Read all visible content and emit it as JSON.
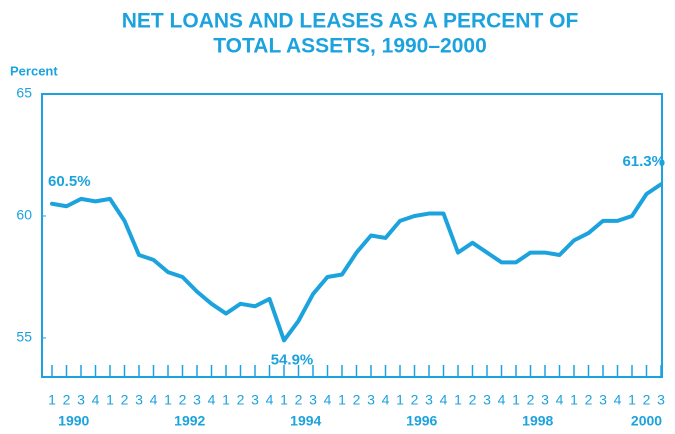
{
  "chart_data": {
    "type": "line",
    "title": [
      "NET LOANS AND LEASES AS A PERCENT OF",
      "TOTAL ASSETS, 1990–2000"
    ],
    "y_label": "Percent",
    "categories": [
      "1",
      "2",
      "3",
      "4",
      "1",
      "2",
      "3",
      "4",
      "1",
      "2",
      "3",
      "4",
      "1",
      "2",
      "3",
      "4",
      "1",
      "2",
      "3",
      "4",
      "1",
      "2",
      "3",
      "4",
      "1",
      "2",
      "3",
      "4",
      "1",
      "2",
      "3",
      "4",
      "1",
      "2",
      "3",
      "4",
      "1",
      "2",
      "3",
      "4",
      "1",
      "2",
      "3"
    ],
    "years": [
      "1990",
      null,
      "1992",
      null,
      "1994",
      null,
      "1996",
      null,
      "1998",
      null,
      "2000"
    ],
    "series": [
      {
        "name": "Net loans and leases",
        "color": "#1ca3de",
        "values": [
          60.5,
          60.4,
          60.7,
          60.6,
          60.7,
          59.8,
          58.4,
          58.2,
          57.7,
          57.5,
          56.9,
          56.4,
          56.0,
          56.4,
          56.3,
          56.6,
          54.9,
          55.7,
          56.8,
          57.5,
          57.6,
          58.5,
          59.2,
          59.1,
          59.8,
          60.0,
          60.1,
          60.1,
          58.5,
          58.9,
          58.5,
          58.1,
          58.1,
          58.5,
          58.5,
          58.4,
          59.0,
          59.3,
          59.8,
          59.8,
          60.0,
          60.9,
          61.3
        ],
        "value_labels": [
          "60.5%",
          null,
          null,
          null,
          null,
          null,
          null,
          null,
          null,
          null,
          null,
          null,
          null,
          null,
          null,
          null,
          "54.9%",
          null,
          null,
          null,
          null,
          null,
          null,
          null,
          null,
          null,
          null,
          null,
          null,
          null,
          null,
          null,
          null,
          null,
          null,
          null,
          null,
          null,
          null,
          null,
          null,
          null,
          "61.3%"
        ]
      }
    ],
    "ylim": [
      53.4,
      65
    ],
    "yticks": [
      55,
      60,
      65
    ],
    "grid": false
  }
}
